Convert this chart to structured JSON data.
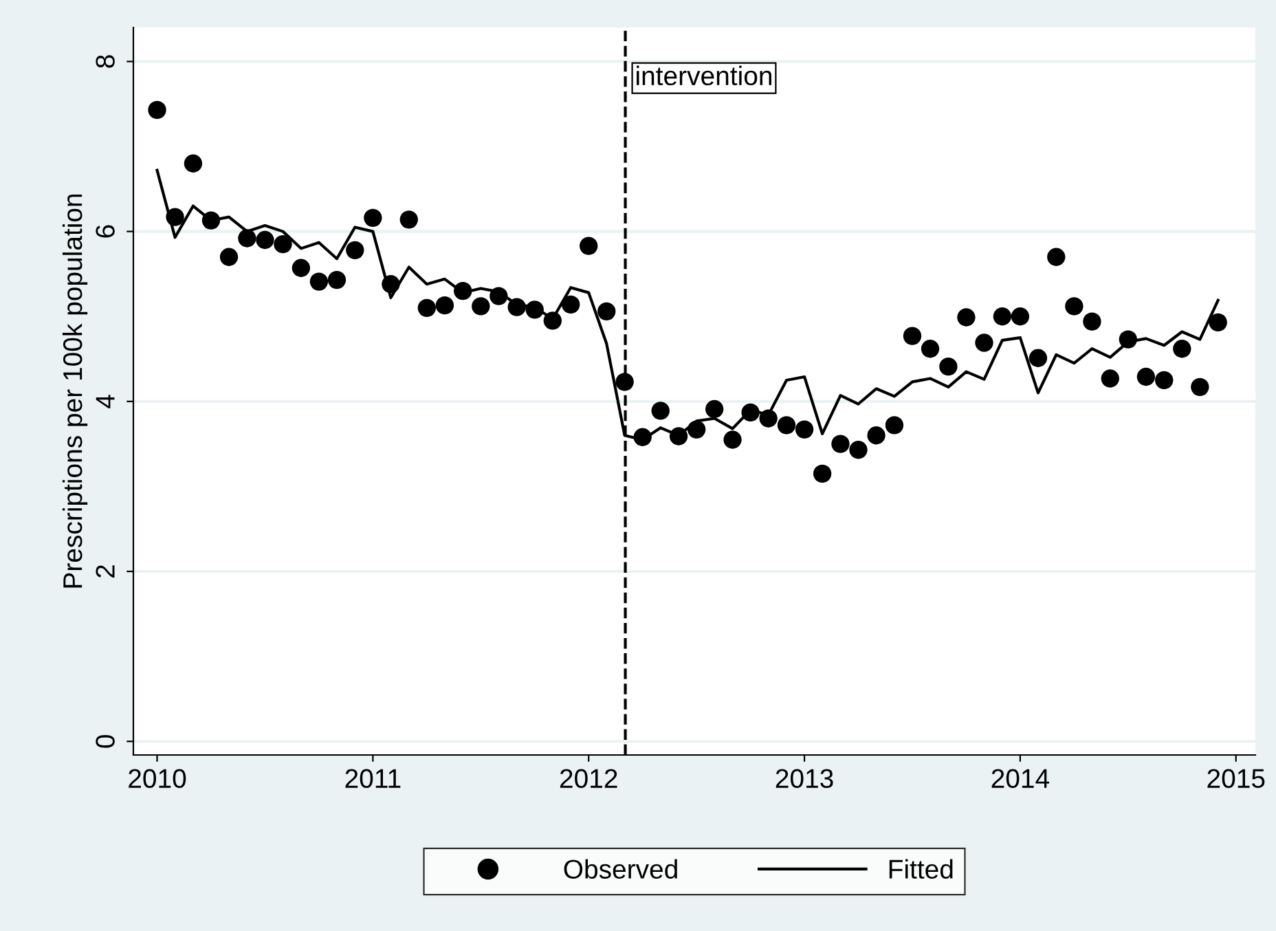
{
  "chart_data": {
    "type": "scatter",
    "xlabel": null,
    "ylabel": "Prescriptions per 100k population",
    "x": [
      2010.0,
      2010.083,
      2010.167,
      2010.25,
      2010.333,
      2010.417,
      2010.5,
      2010.583,
      2010.667,
      2010.75,
      2010.833,
      2010.917,
      2011.0,
      2011.083,
      2011.167,
      2011.25,
      2011.333,
      2011.417,
      2011.5,
      2011.583,
      2011.667,
      2011.75,
      2011.833,
      2011.917,
      2012.0,
      2012.083,
      2012.167,
      2012.25,
      2012.333,
      2012.417,
      2012.5,
      2012.583,
      2012.667,
      2012.75,
      2012.833,
      2012.917,
      2013.0,
      2013.083,
      2013.167,
      2013.25,
      2013.333,
      2013.417,
      2013.5,
      2013.583,
      2013.667,
      2013.75,
      2013.833,
      2013.917,
      2014.0,
      2014.083,
      2014.167,
      2014.25,
      2014.333,
      2014.417,
      2014.5,
      2014.583,
      2014.667,
      2014.75,
      2014.833,
      2014.917
    ],
    "series": [
      {
        "name": "Observed",
        "color": "#000000",
        "marker": "circle",
        "values": [
          7.43,
          6.17,
          6.8,
          6.13,
          5.7,
          5.92,
          5.9,
          5.85,
          5.57,
          5.41,
          5.43,
          5.78,
          6.16,
          5.38,
          6.14,
          5.1,
          5.13,
          5.3,
          5.12,
          5.24,
          5.11,
          5.08,
          4.95,
          5.14,
          5.83,
          5.06,
          4.23,
          3.58,
          3.89,
          3.59,
          3.67,
          3.91,
          3.55,
          3.87,
          3.8,
          3.72,
          3.67,
          3.15,
          3.5,
          3.43,
          3.6,
          3.72,
          4.77,
          4.62,
          4.41,
          4.99,
          4.69,
          5.0,
          5.0,
          4.51,
          5.7,
          5.12,
          4.94,
          4.27,
          4.73,
          4.29,
          4.25,
          4.62,
          4.17,
          4.93
        ]
      },
      {
        "name": "Fitted",
        "type": "line",
        "color": "#000000",
        "marker": "none",
        "line_style": "solid",
        "values": [
          6.72,
          5.93,
          6.3,
          6.13,
          6.17,
          6.0,
          6.07,
          6.0,
          5.8,
          5.87,
          5.68,
          6.05,
          6.0,
          5.22,
          5.58,
          5.38,
          5.44,
          5.28,
          5.33,
          5.29,
          5.14,
          5.11,
          4.97,
          5.34,
          5.28,
          4.68,
          3.6,
          3.55,
          3.69,
          3.6,
          3.77,
          3.8,
          3.68,
          3.9,
          3.84,
          4.25,
          4.29,
          3.62,
          4.07,
          3.97,
          4.15,
          4.06,
          4.23,
          4.27,
          4.17,
          4.35,
          4.26,
          4.72,
          4.75,
          4.1,
          4.55,
          4.45,
          4.62,
          4.52,
          4.7,
          4.74,
          4.66,
          4.82,
          4.73,
          5.19
        ]
      }
    ],
    "xlim": [
      2009.89,
      2015.09
    ],
    "xticks": [
      2010,
      2011,
      2012,
      2013,
      2014,
      2015
    ],
    "ylim": [
      -0.16,
      8.4
    ],
    "yticks": [
      0,
      2,
      4,
      6,
      8
    ],
    "grid": "y",
    "legend": "bottom",
    "ref_lines": [
      {
        "axis": "x",
        "value": 2012.17,
        "label": "intervention",
        "color": "#000000",
        "line_style": "dashed"
      }
    ]
  }
}
